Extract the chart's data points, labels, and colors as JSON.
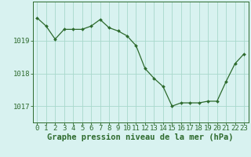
{
  "x": [
    0,
    1,
    2,
    3,
    4,
    5,
    6,
    7,
    8,
    9,
    10,
    11,
    12,
    13,
    14,
    15,
    16,
    17,
    18,
    19,
    20,
    21,
    22,
    23
  ],
  "y": [
    1019.7,
    1019.45,
    1019.05,
    1019.35,
    1019.35,
    1019.35,
    1019.45,
    1019.65,
    1019.4,
    1019.3,
    1019.15,
    1018.85,
    1018.15,
    1017.85,
    1017.6,
    1017.0,
    1017.1,
    1017.1,
    1017.1,
    1017.15,
    1017.15,
    1017.75,
    1018.3,
    1018.6
  ],
  "line_color": "#2d6a2d",
  "marker_color": "#2d6a2d",
  "bg_color": "#d8f2f0",
  "grid_color": "#a8d8cc",
  "axis_color": "#2d6a2d",
  "xlabel": "Graphe pression niveau de la mer (hPa)",
  "ylim": [
    1016.5,
    1020.2
  ],
  "yticks": [
    1017,
    1018,
    1019
  ],
  "xticks": [
    0,
    1,
    2,
    3,
    4,
    5,
    6,
    7,
    8,
    9,
    10,
    11,
    12,
    13,
    14,
    15,
    16,
    17,
    18,
    19,
    20,
    21,
    22,
    23
  ],
  "xlabel_fontsize": 7.5,
  "tick_fontsize": 6.5,
  "figwidth": 3.2,
  "figheight": 2.0,
  "dpi": 100
}
